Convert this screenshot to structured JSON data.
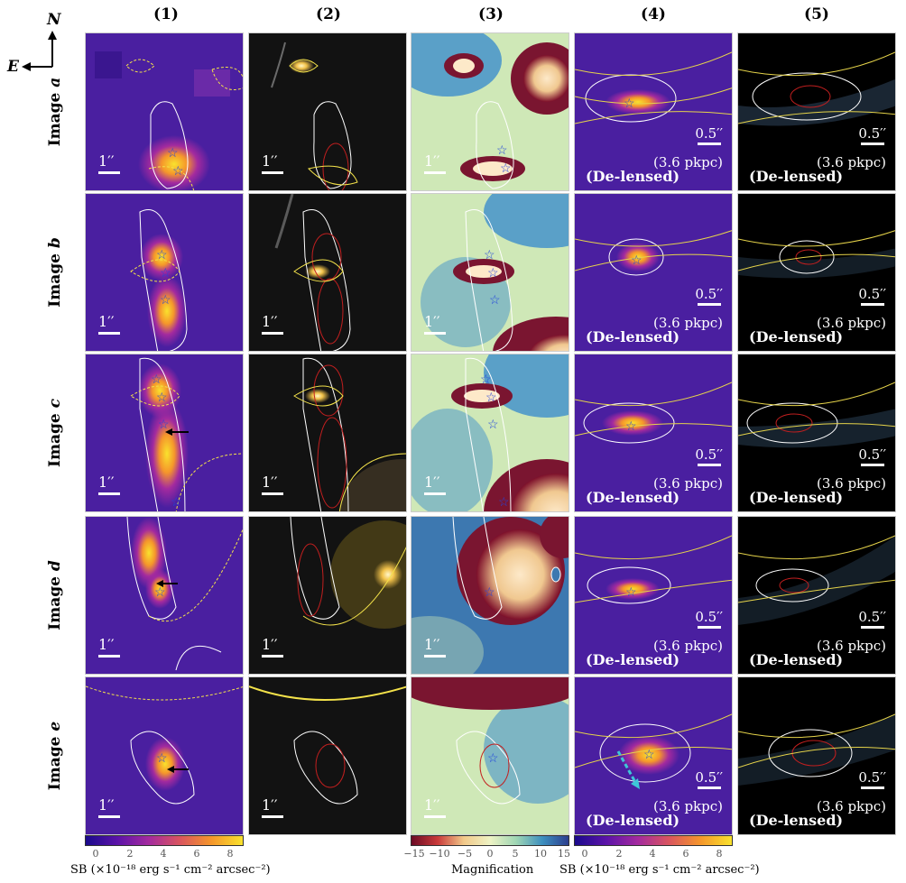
{
  "columns": [
    "(1)",
    "(2)",
    "(3)",
    "(4)",
    "(5)"
  ],
  "rows": [
    {
      "prefix": "Image",
      "letter": "a"
    },
    {
      "prefix": "Image",
      "letter": "b"
    },
    {
      "prefix": "Image",
      "letter": "c"
    },
    {
      "prefix": "Image",
      "letter": "d"
    },
    {
      "prefix": "Image",
      "letter": "e"
    }
  ],
  "compass": {
    "north": "N",
    "east": "E"
  },
  "scalebars": {
    "wide": "1′′",
    "narrow": "0.5′′",
    "physical": "(3.6 pkpc)"
  },
  "delensed_label": "(De-lensed)",
  "colorbars": {
    "sb": {
      "ticks": [
        "0",
        "2",
        "4",
        "6",
        "8"
      ],
      "label": "SB (×10⁻¹⁸ erg s⁻¹ cm⁻² arcsec⁻²)",
      "colors": [
        "#1a0a8c",
        "#5b13a8",
        "#a32a9f",
        "#d9555f",
        "#f5962b",
        "#f9e22d"
      ]
    },
    "mag": {
      "ticks": [
        "−15",
        "−10",
        "−5",
        "0",
        "5",
        "10",
        "15"
      ],
      "label": "Magnification",
      "colors": [
        "#6b0a24",
        "#c93a3a",
        "#f2c98a",
        "#eef3c4",
        "#9fd6b4",
        "#3d8fbf",
        "#2b3e8e"
      ]
    }
  }
}
